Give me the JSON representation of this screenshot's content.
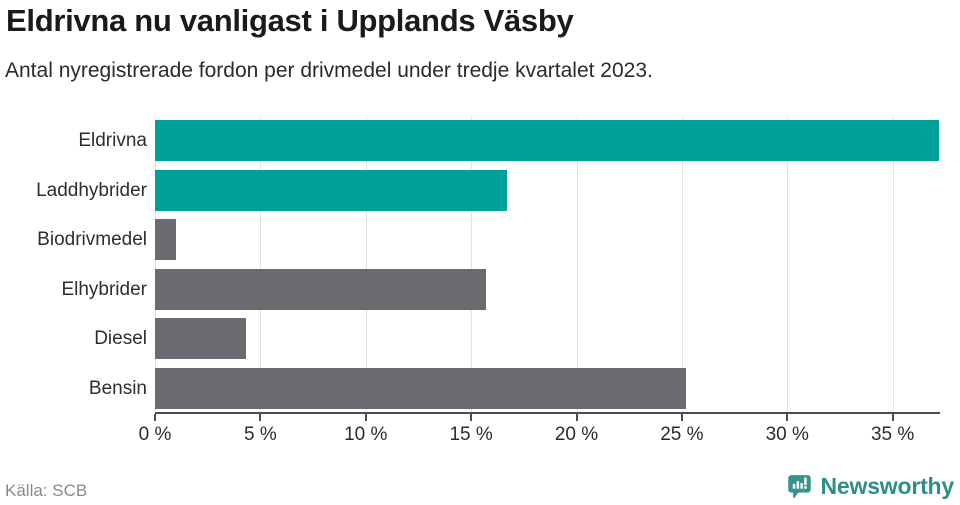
{
  "chart_data": {
    "type": "bar",
    "orientation": "horizontal",
    "title": "Eldrivna nu vanligast i Upplands Väsby",
    "subtitle": "Antal nyregistrerade fordon per drivmedel under tredje kvartalet 2023.",
    "categories": [
      "Eldrivna",
      "Laddhybrider",
      "Biodrivmedel",
      "Elhybrider",
      "Diesel",
      "Bensin"
    ],
    "values": [
      37.2,
      16.7,
      1.0,
      15.7,
      4.3,
      25.2
    ],
    "unit": "%",
    "xlim": [
      0,
      37.2
    ],
    "xticks": [
      0,
      5,
      10,
      15,
      20,
      25,
      30,
      35
    ],
    "xtick_labels": [
      "0 %",
      "5 %",
      "10 %",
      "15 %",
      "20 %",
      "25 %",
      "30 %",
      "35 %"
    ],
    "grid": "vertical",
    "legend": "none",
    "bar_color_keys": [
      "electric",
      "electric",
      "other",
      "other",
      "other",
      "other"
    ]
  },
  "theme": {
    "teal": "#00A099",
    "gray": "#6C6A71",
    "grid": "#E3E3E3",
    "axis": "#4D4D4D",
    "brand_teal": "#35948E"
  },
  "footer": {
    "source": "Källa: SCB",
    "brand": "Newsworthy"
  }
}
